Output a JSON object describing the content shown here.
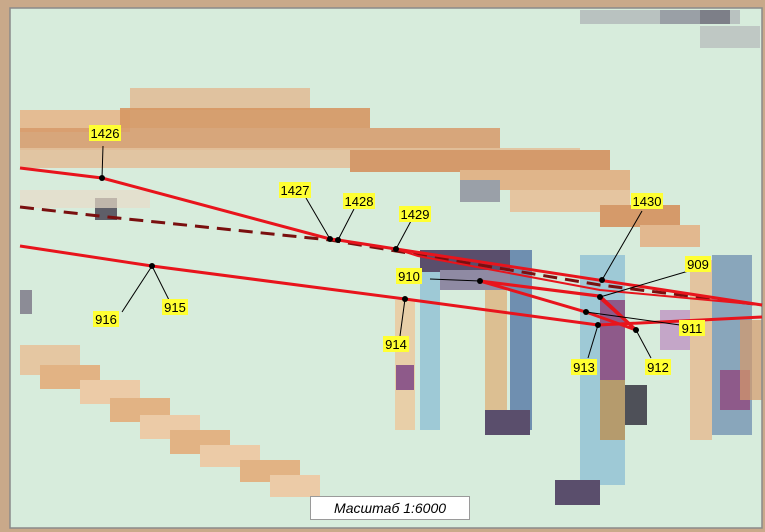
{
  "map": {
    "scale_label": "Масштаб 1:6000",
    "colors": {
      "background": "#d7ecdc",
      "solid_line": "#e8141c",
      "dashed_line": "#7a0f0f",
      "label_bg": "#ffff33",
      "frame": "#8a8a8a"
    },
    "points": [
      {
        "id": "1426",
        "label": "1426"
      },
      {
        "id": "1427",
        "label": "1427"
      },
      {
        "id": "1428",
        "label": "1428"
      },
      {
        "id": "1429",
        "label": "1429"
      },
      {
        "id": "1430",
        "label": "1430"
      },
      {
        "id": "909",
        "label": "909"
      },
      {
        "id": "910",
        "label": "910"
      },
      {
        "id": "911",
        "label": "911"
      },
      {
        "id": "912",
        "label": "912"
      },
      {
        "id": "913",
        "label": "913"
      },
      {
        "id": "914",
        "label": "914"
      },
      {
        "id": "915",
        "label": "915"
      },
      {
        "id": "916",
        "label": "916"
      }
    ]
  }
}
